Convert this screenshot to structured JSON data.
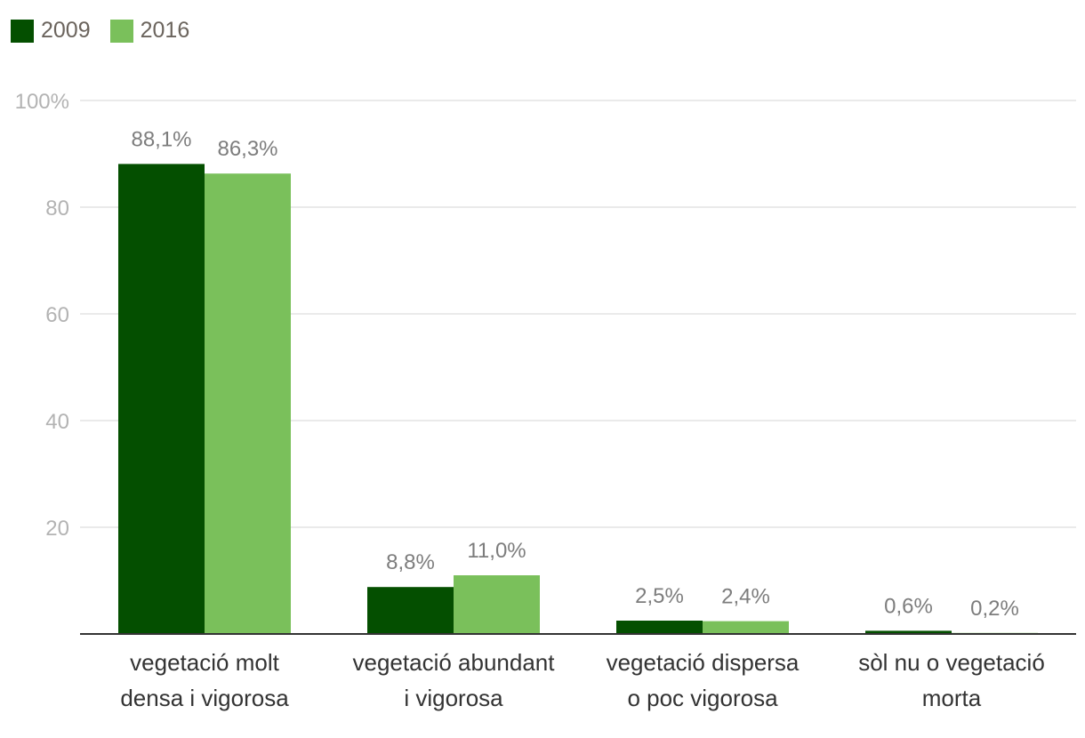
{
  "chart_data": {
    "type": "bar",
    "categories": [
      [
        "vegetació molt",
        "densa i vigorosa"
      ],
      [
        "vegetació abundant",
        "i vigorosa"
      ],
      [
        "vegetació dispersa",
        "o poc vigorosa"
      ],
      [
        "sòl nu o vegetació",
        "morta"
      ]
    ],
    "series": [
      {
        "name": "2009",
        "color": "#044f00",
        "values": [
          88.1,
          8.8,
          2.5,
          0.6
        ],
        "labels": [
          "88,1%",
          "8,8%",
          "2,5%",
          "0,6%"
        ]
      },
      {
        "name": "2016",
        "color": "#7ac05b",
        "values": [
          86.3,
          11.0,
          2.4,
          0.2
        ],
        "labels": [
          "86,3%",
          "11,0%",
          "2,4%",
          "0,2%"
        ]
      }
    ],
    "yticks": [
      {
        "value": 20,
        "label": "20"
      },
      {
        "value": 40,
        "label": "40"
      },
      {
        "value": 60,
        "label": "60"
      },
      {
        "value": 80,
        "label": "80"
      },
      {
        "value": 100,
        "label": "100%"
      }
    ],
    "ylim": [
      0,
      100
    ],
    "grid": true,
    "legend_position": "top-left",
    "xlabel": "",
    "ylabel": ""
  }
}
